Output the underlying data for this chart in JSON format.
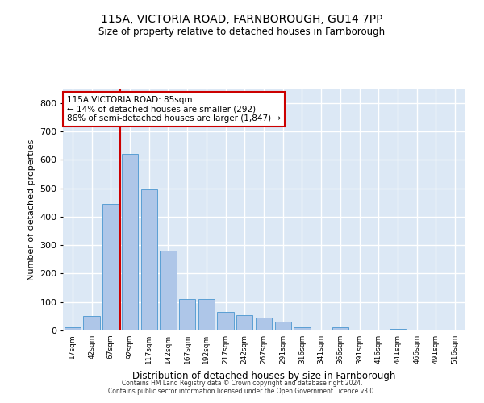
{
  "title1": "115A, VICTORIA ROAD, FARNBOROUGH, GU14 7PP",
  "title2": "Size of property relative to detached houses in Farnborough",
  "xlabel": "Distribution of detached houses by size in Farnborough",
  "ylabel": "Number of detached properties",
  "categories": [
    "17sqm",
    "42sqm",
    "67sqm",
    "92sqm",
    "117sqm",
    "142sqm",
    "167sqm",
    "192sqm",
    "217sqm",
    "242sqm",
    "267sqm",
    "291sqm",
    "316sqm",
    "341sqm",
    "366sqm",
    "391sqm",
    "416sqm",
    "441sqm",
    "466sqm",
    "491sqm",
    "516sqm"
  ],
  "values": [
    10,
    50,
    445,
    620,
    495,
    280,
    110,
    110,
    65,
    55,
    45,
    30,
    10,
    0,
    10,
    0,
    0,
    5,
    0,
    0,
    0
  ],
  "bar_color": "#aec6e8",
  "bar_edge_color": "#5a9fd4",
  "bg_color": "#dce8f5",
  "grid_color": "#ffffff",
  "property_line_color": "#cc0000",
  "annotation_text": "115A VICTORIA ROAD: 85sqm\n← 14% of detached houses are smaller (292)\n86% of semi-detached houses are larger (1,847) →",
  "annotation_box_color": "#cc0000",
  "footer1": "Contains HM Land Registry data © Crown copyright and database right 2024.",
  "footer2": "Contains public sector information licensed under the Open Government Licence v3.0.",
  "ylim": [
    0,
    850
  ],
  "yticks": [
    0,
    100,
    200,
    300,
    400,
    500,
    600,
    700,
    800
  ]
}
